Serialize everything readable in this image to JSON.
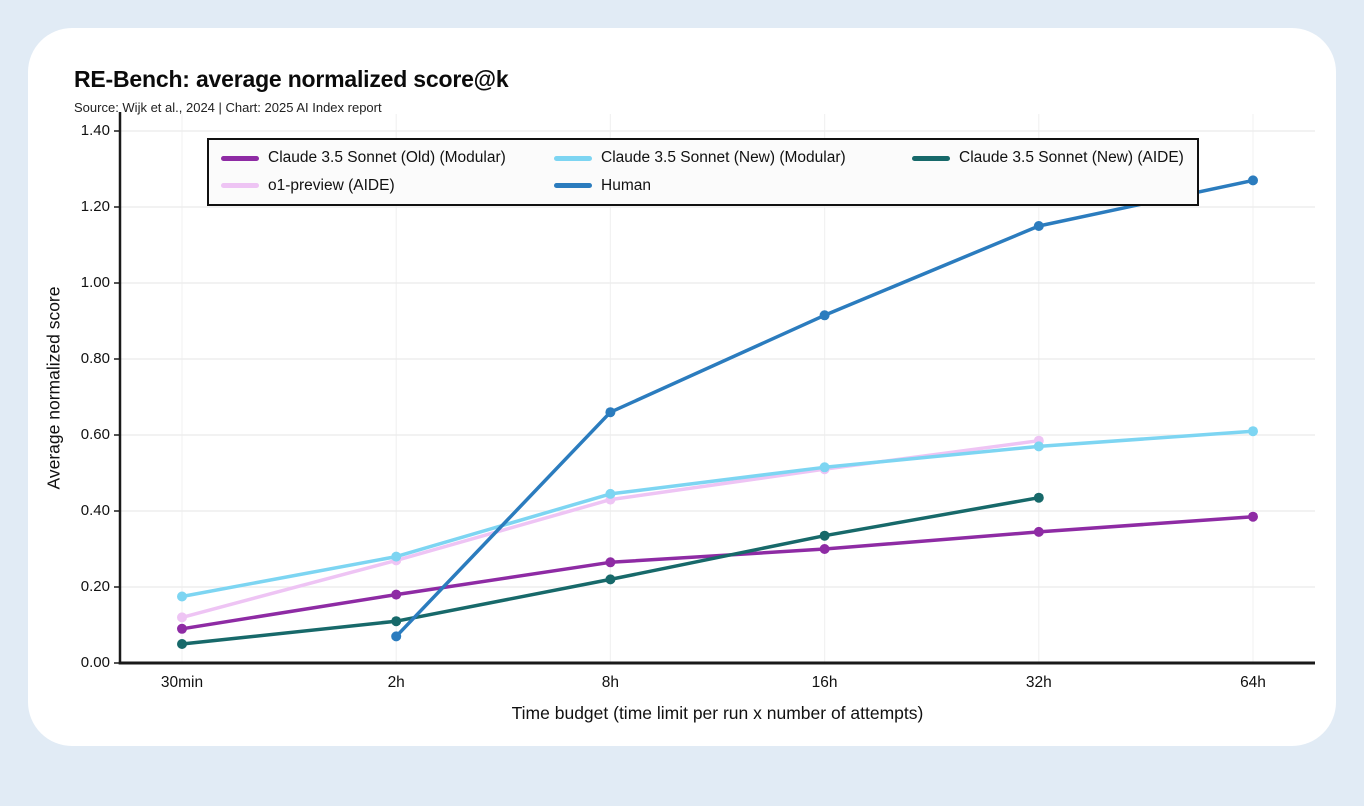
{
  "header": {
    "title": "RE-Bench: average normalized score@k",
    "source": "Source: Wijk et al., 2024 | Chart: 2025 AI Index report"
  },
  "legend": {
    "items": [
      {
        "label": "Claude 3.5 Sonnet (Old) (Modular)",
        "color": "#8e2ba4"
      },
      {
        "label": "Claude 3.5 Sonnet (New) (Modular)",
        "color": "#7dd5f2"
      },
      {
        "label": "Claude 3.5 Sonnet (New) (AIDE)",
        "color": "#17696a"
      },
      {
        "label": "o1-preview (AIDE)",
        "color": "#eec4f4"
      },
      {
        "label": "Human",
        "color": "#2b7cbe"
      }
    ]
  },
  "chart_data": {
    "type": "line",
    "title": "RE-Bench: average normalized score@k",
    "xlabel": "Time budget (time limit per run x number of attempts)",
    "ylabel": "Average normalized score",
    "categories": [
      "30min",
      "2h",
      "8h",
      "16h",
      "32h",
      "64h"
    ],
    "ylim": [
      0,
      1.4
    ],
    "ytick_values": [
      0,
      0.2,
      0.4,
      0.6,
      0.8,
      1.0,
      1.2,
      1.4
    ],
    "ytick_labels": [
      "0.00",
      "0.20",
      "0.40",
      "0.60",
      "0.80",
      "1.00",
      "1.20",
      "1.40"
    ],
    "grid": true,
    "legend_position": "top",
    "marker": "circle",
    "series": [
      {
        "name": "o1-preview (AIDE)",
        "color": "#eec4f4",
        "values": [
          0.12,
          0.27,
          0.43,
          0.51,
          0.585,
          null
        ]
      },
      {
        "name": "Claude 3.5 Sonnet (Old) (Modular)",
        "color": "#8e2ba4",
        "values": [
          0.09,
          0.18,
          0.265,
          0.3,
          0.345,
          0.385
        ]
      },
      {
        "name": "Claude 3.5 Sonnet (New) (AIDE)",
        "color": "#17696a",
        "values": [
          0.05,
          0.11,
          0.22,
          0.335,
          0.435,
          null
        ]
      },
      {
        "name": "Claude 3.5 Sonnet (New) (Modular)",
        "color": "#7dd5f2",
        "values": [
          0.175,
          0.28,
          0.445,
          0.515,
          0.57,
          0.61
        ]
      },
      {
        "name": "Human",
        "color": "#2b7cbe",
        "values": [
          null,
          0.07,
          0.66,
          0.915,
          1.15,
          1.27
        ]
      }
    ]
  },
  "colors": {
    "page_background": "#e1ebf5",
    "card_background": "#ffffff",
    "axis": "#1a1a1a",
    "grid_horizontal": "#ebebeb",
    "grid_vertical": "#f2f2f2"
  }
}
